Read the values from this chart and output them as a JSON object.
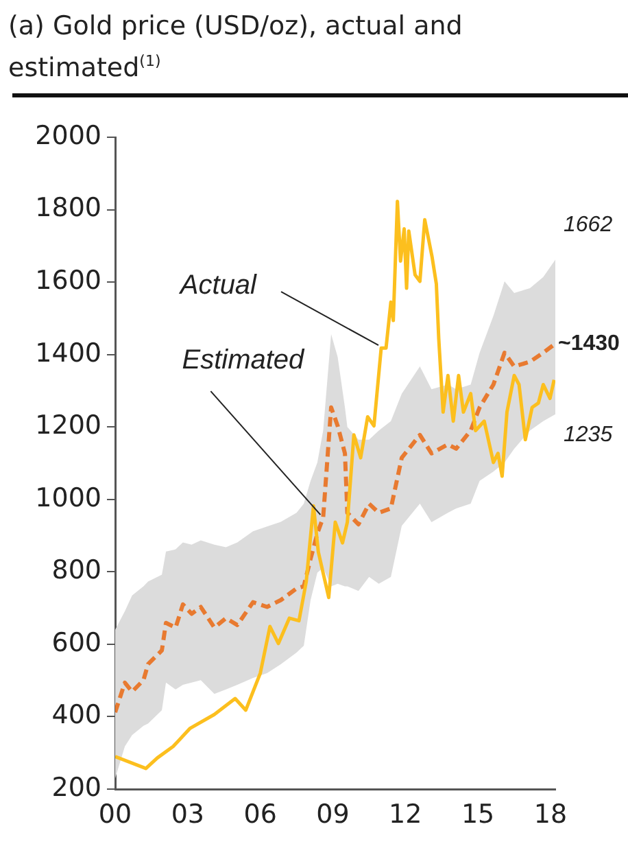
{
  "chart_data": {
    "type": "line",
    "title": "(a) Gold price (USD/oz), actual and estimated$^{(1)}$",
    "xlim": [
      2000,
      2018.2
    ],
    "ylim": [
      200,
      2000
    ],
    "xticks": [
      {
        "value": 2000,
        "label": "00"
      },
      {
        "value": 2003,
        "label": "03"
      },
      {
        "value": 2006,
        "label": "06"
      },
      {
        "value": 2009,
        "label": "09"
      },
      {
        "value": 2012,
        "label": "12"
      },
      {
        "value": 2015,
        "label": "15"
      },
      {
        "value": 2018,
        "label": "18"
      }
    ],
    "yticks": [
      200,
      400,
      600,
      800,
      1000,
      1200,
      1400,
      1600,
      1800,
      2000
    ],
    "grid": false,
    "legend": false,
    "marker": "none",
    "series": [
      {
        "color": "#fcbf1e",
        "line_style": "solid",
        "x": [
          2000.0,
          2001.27,
          2001.74,
          2002.4,
          2003.1,
          2004.1,
          2004.96,
          2005.4,
          2006.0,
          2006.4,
          2006.75,
          2007.2,
          2007.6,
          2007.9,
          2008.2,
          2008.4,
          2008.83,
          2009.1,
          2009.4,
          2009.6,
          2009.87,
          2010.15,
          2010.44,
          2010.7,
          2011.0,
          2011.2,
          2011.4,
          2011.5,
          2011.67,
          2011.8,
          2011.95,
          2012.05,
          2012.14,
          2012.4,
          2012.6,
          2012.8,
          2013.1,
          2013.28,
          2013.38,
          2013.56,
          2013.76,
          2013.98,
          2014.2,
          2014.4,
          2014.7,
          2014.9,
          2015.26,
          2015.64,
          2015.83,
          2016.0,
          2016.2,
          2016.5,
          2016.7,
          2016.96,
          2017.24,
          2017.5,
          2017.7,
          2017.98,
          2018.15
        ],
        "values": [
          290,
          257,
          286,
          318,
          368,
          406,
          450,
          418,
          520,
          649,
          602,
          672,
          665,
          773,
          982,
          855,
          729,
          937,
          880,
          937,
          1178,
          1115,
          1228,
          1203,
          1418,
          1418,
          1545,
          1494,
          1823,
          1658,
          1747,
          1583,
          1741,
          1620,
          1602,
          1772,
          1671,
          1595,
          1443,
          1241,
          1342,
          1216,
          1342,
          1241,
          1292,
          1190,
          1216,
          1102,
          1127,
          1064,
          1241,
          1342,
          1317,
          1165,
          1254,
          1266,
          1317,
          1279,
          1330
        ]
      },
      {
        "color": "#e87a30",
        "line_style": "dashed",
        "x": [
          2000.0,
          2000.4,
          2000.7,
          2001.17,
          2001.36,
          2001.93,
          2002.1,
          2002.5,
          2002.8,
          2003.16,
          2003.54,
          2004.1,
          2004.58,
          2005.05,
          2005.7,
          2006.28,
          2006.85,
          2007.5,
          2007.8,
          2008.08,
          2008.36,
          2008.6,
          2008.93,
          2009.2,
          2009.5,
          2009.6,
          2010.06,
          2010.5,
          2010.9,
          2011.4,
          2011.85,
          2012.6,
          2013.08,
          2013.76,
          2014.1,
          2014.7,
          2015.07,
          2015.64,
          2016.1,
          2016.5,
          2017.15,
          2017.7,
          2018.2
        ],
        "values": [
          412,
          494,
          469,
          501,
          545,
          583,
          659,
          646,
          710,
          684,
          703,
          646,
          672,
          653,
          716,
          703,
          722,
          754,
          760,
          836,
          906,
          950,
          1254,
          1203,
          1127,
          963,
          931,
          988,
          963,
          975,
          1115,
          1178,
          1127,
          1152,
          1140,
          1190,
          1254,
          1317,
          1405,
          1367,
          1380,
          1405,
          1430
        ],
        "upper": [
          640,
          691,
          735,
          760,
          773,
          792,
          856,
          862,
          881,
          875,
          887,
          875,
          868,
          881,
          912,
          925,
          938,
          963,
          988,
          1051,
          1102,
          1190,
          1456,
          1393,
          1254,
          1200,
          1165,
          1165,
          1190,
          1216,
          1292,
          1367,
          1304,
          1317,
          1304,
          1317,
          1405,
          1507,
          1602,
          1570,
          1583,
          1614,
          1662
        ],
        "lower": [
          230,
          318,
          349,
          375,
          381,
          418,
          494,
          475,
          488,
          494,
          501,
          463,
          475,
          488,
          507,
          520,
          545,
          577,
          596,
          722,
          798,
          811,
          760,
          767,
          760,
          760,
          747,
          786,
          767,
          786,
          927,
          988,
          937,
          963,
          975,
          988,
          1051,
          1077,
          1102,
          1140,
          1190,
          1216,
          1235
        ]
      }
    ],
    "annotations": [
      {
        "text": "Actual",
        "x": 2011.0,
        "y": 1418
      },
      {
        "text": "Estimated",
        "x": 2008.6,
        "y": 950
      },
      {
        "text": "1662",
        "x": 2018.2,
        "y": 1662
      },
      {
        "text": "~1430",
        "x": 2018.2,
        "y": 1430
      },
      {
        "text": "1235",
        "x": 2018.2,
        "y": 1235
      }
    ]
  }
}
